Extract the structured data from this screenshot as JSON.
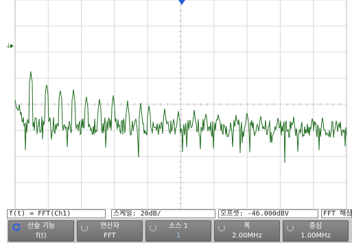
{
  "trace_color": "#1d6b1d",
  "trigger_marker_color": "#1f5fd0",
  "status": {
    "function_label": "f(t) = FFT(Ch1)",
    "scale_label": "스케일: 20dB/",
    "offset_label": "오프셋: -46.000dBV",
    "fft_label": "FFT 해상"
  },
  "softkeys": [
    {
      "label": "산술 기능",
      "value": "f(t)",
      "icon": "cycle-arrow-icon"
    },
    {
      "label": "연산자",
      "value": "FFT",
      "icon": "knob-icon"
    },
    {
      "label": "소스 1",
      "value": "1",
      "icon": "knob-icon"
    },
    {
      "label": "폭",
      "value": "2.00MHz",
      "icon": "knob-icon"
    },
    {
      "label": "중심",
      "value": "1.00MHz",
      "icon": "knob-icon"
    }
  ]
}
